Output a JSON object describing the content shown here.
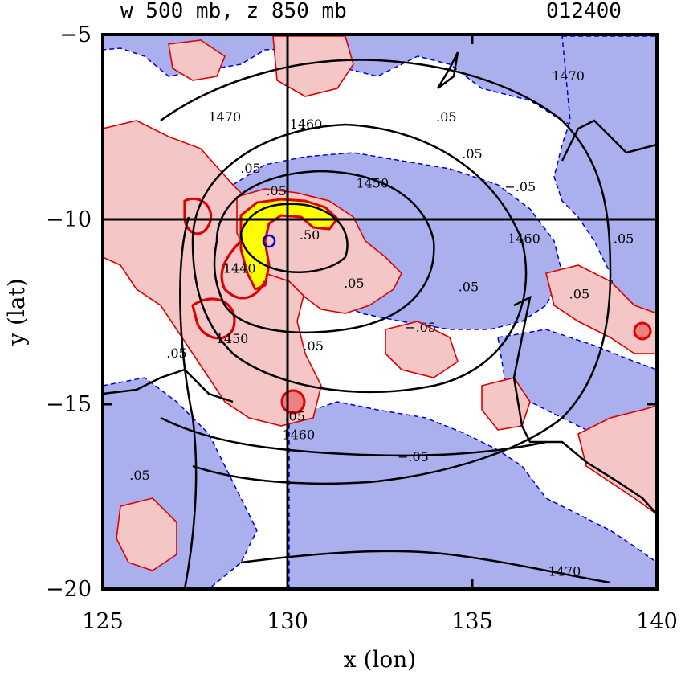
{
  "chart_data": {
    "type": "contour",
    "title_left": "w 500 mb, z 850 mb",
    "title_right": "012400",
    "xlabel": "x (lon)",
    "ylabel": "y (lat)",
    "xlim": [
      125,
      140
    ],
    "ylim": [
      -20,
      -5
    ],
    "x_ticks": [
      125,
      130,
      135,
      140
    ],
    "y_ticks": [
      -5,
      -10,
      -15,
      -20
    ],
    "x_tick_labels": [
      "125",
      "130",
      "135",
      "140"
    ],
    "y_tick_labels": [
      "−5",
      "−10",
      "−15",
      "−20"
    ],
    "crosshair": {
      "lon": 130,
      "lat": -10
    },
    "colors": {
      "positive_fill": "#f5c6c6",
      "negative_fill": "#aab0ee",
      "strong_fill": "#ffff00",
      "positive_line": "#dd0000",
      "negative_line": "#0000cc",
      "height_line": "#000000"
    },
    "height_contours": [
      {
        "level": "1450",
        "label": "1450",
        "lon": 132.3,
        "lat": -9.1
      },
      {
        "level": "1460",
        "label": "1460",
        "lon": 130.5,
        "lat": -7.5
      },
      {
        "level": "1460",
        "label": "1460",
        "lon": 136.4,
        "lat": -10.6
      },
      {
        "level": "1460",
        "label": "1460",
        "lon": 130.3,
        "lat": -15.9
      },
      {
        "level": "1470",
        "label": "1470",
        "lon": 128.3,
        "lat": -7.3
      },
      {
        "level": "1470",
        "label": "1470",
        "lon": 137.6,
        "lat": -6.2
      },
      {
        "level": "1470",
        "label": "1470",
        "lon": 137.5,
        "lat": -19.6
      },
      {
        "level": "1450",
        "label": "1450",
        "lon": 128.5,
        "lat": -13.3
      },
      {
        "level": "1440",
        "label": "1440",
        "lon": 128.7,
        "lat": -11.4
      }
    ],
    "w_labels": [
      {
        "label": ".05",
        "lon": 129.7,
        "lat": -9.3
      },
      {
        "label": ".05",
        "lon": 129.0,
        "lat": -8.7
      },
      {
        "label": ".05",
        "lon": 134.3,
        "lat": -7.3
      },
      {
        "label": ".05",
        "lon": 135.0,
        "lat": -8.3
      },
      {
        "label": "−.05",
        "lon": 136.3,
        "lat": -9.2
      },
      {
        "label": ".05",
        "lon": 139.1,
        "lat": -10.6
      },
      {
        "label": ".05",
        "lon": 137.9,
        "lat": -12.1
      },
      {
        "label": ".05",
        "lon": 134.9,
        "lat": -11.9
      },
      {
        "label": ".05",
        "lon": 131.8,
        "lat": -11.8
      },
      {
        "label": "−.05",
        "lon": 133.6,
        "lat": -13.0
      },
      {
        "label": ".05",
        "lon": 130.7,
        "lat": -13.5
      },
      {
        "label": ".05",
        "lon": 127.0,
        "lat": -13.7
      },
      {
        "label": ".05",
        "lon": 130.2,
        "lat": -15.4
      },
      {
        "label": "−.05",
        "lon": 133.4,
        "lat": -16.5
      },
      {
        "label": ".05",
        "lon": 126.0,
        "lat": -17.0
      },
      {
        "label": ".50",
        "lon": 130.6,
        "lat": -10.5
      }
    ]
  }
}
